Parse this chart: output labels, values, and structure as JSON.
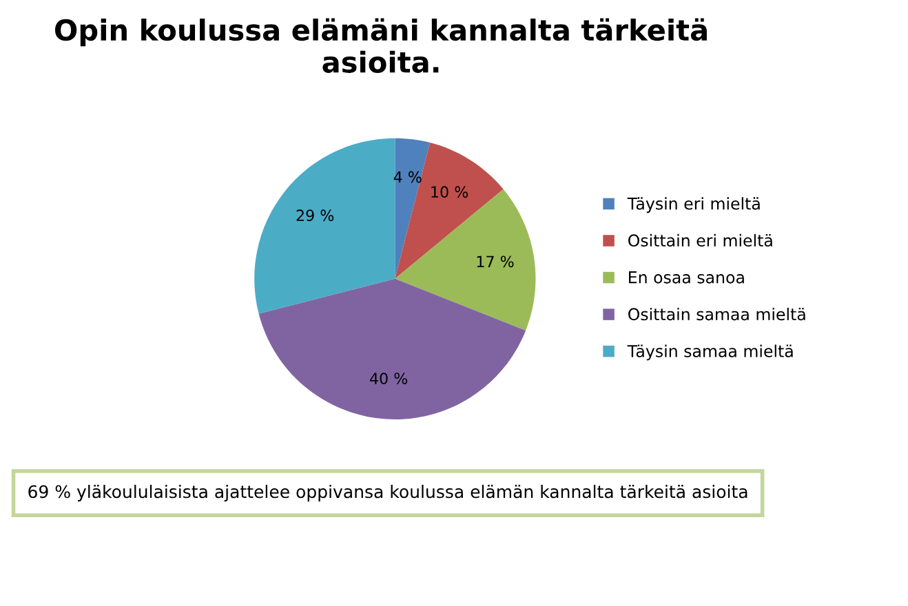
{
  "chart_data": {
    "type": "pie",
    "title": "Opin koulussa elämäni kannalta tärkeitä asioita.",
    "categories": [
      "Täysin eri mieltä",
      "Osittain eri mieltä",
      "En osaa sanoa",
      "Osittain samaa mieltä",
      "Täysin samaa mieltä"
    ],
    "values": [
      4,
      10,
      17,
      40,
      29
    ],
    "colors": [
      "#4f81bd",
      "#c0504d",
      "#9bbb59",
      "#8064a2",
      "#4bacc6"
    ],
    "value_labels": [
      "4 %",
      "10 %",
      "17 %",
      "40 %",
      "29 %"
    ],
    "legend": "right",
    "annotations": [
      "69 % yläkoululaisista ajattelee oppivansa koulussa elämän kannalta tärkeitä asioita"
    ]
  }
}
